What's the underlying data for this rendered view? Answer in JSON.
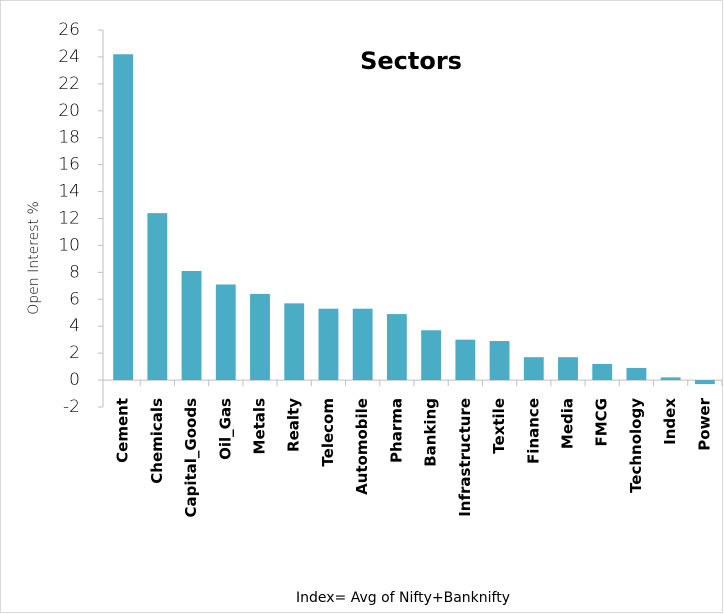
{
  "chart_data": {
    "type": "bar",
    "title": "Sectors",
    "y_label": "Open Interest %",
    "footnote": "Index= Avg of Nifty+Banknifty",
    "categories": [
      "Cement",
      "Chemicals",
      "Capital_Goods",
      "Oil_Gas",
      "Metals",
      "Realty",
      "Telecom",
      "Automobile",
      "Pharma",
      "Banking",
      "Infrastructure",
      "Textile",
      "Finance",
      "Media",
      "FMCG",
      "Technology",
      "Index",
      "Power"
    ],
    "values": [
      24.2,
      12.4,
      8.1,
      7.1,
      6.4,
      5.7,
      5.3,
      5.3,
      4.9,
      3.7,
      3.0,
      2.9,
      1.7,
      1.7,
      1.2,
      0.9,
      0.2,
      -0.3
    ],
    "color": "#4bacc6",
    "ylim": [
      -2,
      26
    ],
    "yticks": [
      -2,
      0,
      2,
      4,
      6,
      8,
      10,
      12,
      14,
      16,
      18,
      20,
      22,
      24,
      26
    ],
    "grid": false
  }
}
